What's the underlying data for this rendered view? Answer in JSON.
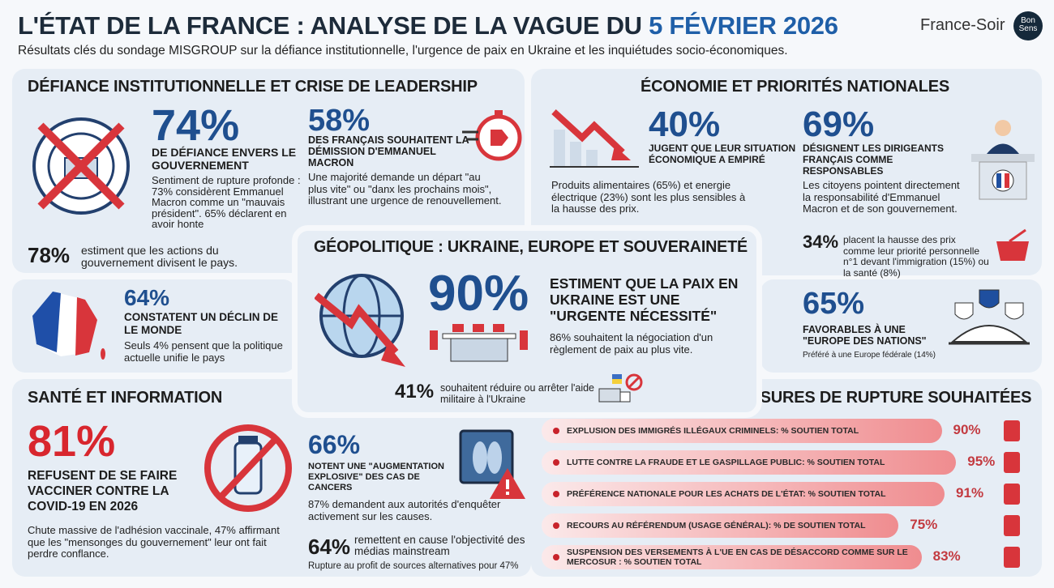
{
  "header": {
    "title_main": "L'ÉTAT DE LA FRANCE : ANALYSE DE LA VAGUE DU ",
    "title_date": "5 FÉVRIER 2026",
    "subtitle": "Résultats clés du sondage MISGROUP sur la défiance institutionnelle, l'urgence de paix en Ukraine et les inquiétudes socio-économiques.",
    "logo_text": "France-Soir",
    "logo_badge": "Bon Sens"
  },
  "colors": {
    "accent_blue": "#1f4f8f",
    "accent_red": "#d8262e",
    "panel": "#e6edf5"
  },
  "defiance": {
    "title": "DÉFIANCE INSTITUTIONNELLE ET CRISE DE LEADERSHIP",
    "stat1": {
      "value": "74%",
      "label": "DE DÉFIANCE ENVERS LE GOUVERNEMENT",
      "text": "Sentiment de rupture profonde : 73% considèrent Emmanuel Macron comme un \"mauvais président\". 65% déclarent en avoir honte",
      "icon": "crossed-government-seal-icon"
    },
    "stat2": {
      "value": "58%",
      "label": "DES FRANÇAIS SOUHAITENT LA DÉMISSION D'EMMANUEL MACRON",
      "text": "Une majorité demande un départ \"au plus vite\" ou \"danx les prochains mois\", illustrant une urgence de renouvellement.",
      "icon": "stopwatch-exit-icon"
    },
    "stat3": {
      "value": "78%",
      "text": "estiment que les actions du gouvernement divisent le pays."
    }
  },
  "decline": {
    "value": "64%",
    "label": "CONSTATENT UN DÉCLIN DE LE MONDE",
    "text": "Seuls 4% pensent que la politique actuelle unifie le pays",
    "icon": "france-map-icon"
  },
  "economie": {
    "title": "ÉCONOMIE ET PRIORITÉS NATIONALES",
    "stat1": {
      "value": "40%",
      "label": "JUGENT QUE LEUR SITUATION ÉCONOMIQUE A EMPIRÉ",
      "text": "Produits alimentaires (65%) et energie électrique (23%) sont les plus sensibles à la hausse des prix.",
      "icon": "falling-chart-icon"
    },
    "stat2": {
      "value": "69%",
      "label": "DÉSIGNENT LES DIRIGEANTS FRANÇAIS COMME RESPONSABLES",
      "text": "Les citoyens pointent directement la responsabilité d'Emmanuel Macron et de son gouvernement.",
      "icon": "politician-podium-icon"
    },
    "stat3": {
      "value": "34%",
      "text": "placent la hausse des prix comme leur priorité personnelle n°1 devant l'immigration (15%) ou la santé (8%)",
      "icon": "shopping-basket-icon"
    }
  },
  "geo": {
    "title": "GÉOPOLITIQUE : UKRAINE, EUROPE ET SOUVERAINETÉ",
    "stat1": {
      "value": "90%",
      "label": "ESTIMENT QUE LA PAIX EN UKRAINE EST UNE \"URGENTE NÉCESSITÉ\"",
      "text": "86% souhaitent la négociation d'un règlement de paix au plus vite.",
      "icon": "globe-decline-icon"
    },
    "stat2": {
      "value": "41%",
      "text": "souhaitent réduire ou arrêter l'aide militaire à l'Ukraine",
      "icon": "truck-no-aid-icon"
    }
  },
  "europe": {
    "value": "65%",
    "label": "FAVORABLES À UNE \"EUROPE DES NATIONS\"",
    "text": "Préféré à une Europe fédérale (14%)",
    "icon": "shields-dome-icon"
  },
  "sante": {
    "title": "SANTÉ ET INFORMATION",
    "stat1": {
      "value": "81%",
      "label": "REFUSENT DE SE FAIRE VACCINER CONTRE LA COVID-19 EN 2026",
      "text": "Chute massive de l'adhésion vaccinale, 47% affirmant que les \"mensonges du gouvernement\" leur ont fait perdre conflance.",
      "icon": "no-vaccine-icon"
    },
    "stat2": {
      "value": "66%",
      "label": "NOTENT UNE \"AUGMENTATION EXPLOSIVE\" DES CAS DE CANCERS",
      "text": "87% demandent aux autorités d'enquêter activement sur les causes.",
      "icon": "xray-warning-icon"
    },
    "stat3": {
      "value": "64%",
      "text": "remettent en cause l'objectivité des médias mainstream",
      "note": "Rupture au profit de sources alternatives pour 47%"
    }
  },
  "mesures": {
    "title": "MESURES DE RUPTURE SOUHAITÉES",
    "items": [
      {
        "label": "EXPLUSION DES IMMIGRÉS ILLÉGAUX CRIMINELS: % SOUTIEN TOTAL",
        "value": 90,
        "value_label": "90%",
        "icon": "exit-door-icon"
      },
      {
        "label": "LUTTE CONTRE LA FRAUDE ET LE GASPILLAGE PUBLIC: % SOUTIEN TOTAL",
        "value": 95,
        "value_label": "95%",
        "icon": "scales-icon"
      },
      {
        "label": "PRÉFÉRENCE NATIONALE POUR LES ACHATS DE L'ÉTAT: % SOUTIEN TOTAL",
        "value": 91,
        "value_label": "91%",
        "icon": "handshake-icon"
      },
      {
        "label": "RECOURS AU RÉFÉRENDUM (USAGE GÉNÉRAL): % DE SOUTIEN TOTAL",
        "value": 75,
        "value_label": "75%",
        "icon": "ballot-box-icon"
      },
      {
        "label": "SUSPENSION DES VERSEMENTS À L'UE EN CAS DE DÉSACCORD COMME SUR LE MERCOSUR : % SOUTIEN TOTAL",
        "value": 83,
        "value_label": "83%",
        "icon": "stop-hand-icon"
      }
    ]
  }
}
